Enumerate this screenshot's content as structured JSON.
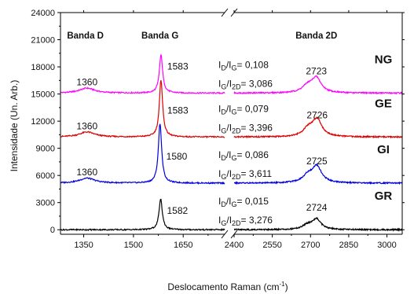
{
  "chart_data": {
    "type": "line",
    "title": "",
    "xlabel": "Deslocamento Raman (cm",
    "xlabel_sup": "-1",
    "xlabel_end": ")",
    "ylabel": "Intensidade (Un. Arb.)",
    "broken_x_axis": true,
    "xlim_left": [
      1280,
      1775
    ],
    "xlim_right": [
      2400,
      3060
    ],
    "ylim": [
      -500,
      24000
    ],
    "grid": false,
    "x_tick_labels": [
      "1350",
      "1500",
      "1650",
      "2400",
      "2550",
      "2700",
      "2850",
      "3000"
    ],
    "x_tick_values": [
      1350,
      1500,
      1650,
      2400,
      2550,
      2700,
      2850,
      3000
    ],
    "y_tick_values": [
      0,
      3000,
      6000,
      9000,
      12000,
      15000,
      18000,
      21000,
      24000
    ],
    "y_tick_labels": [
      "0",
      "3000",
      "6000",
      "9000",
      "12000",
      "15000",
      "18000",
      "21000",
      "24000"
    ],
    "band_labels": [
      {
        "text": "Banda D",
        "x": 1355
      },
      {
        "text": "Banda G",
        "x": 1580
      },
      {
        "text": "Banda 2D",
        "x": 2723
      }
    ],
    "series": [
      {
        "name": "NG",
        "color": "#ff00ff",
        "baseline": 15100,
        "peaks": [
          {
            "x": 1360,
            "height": 550,
            "width": 55,
            "label": "1360"
          },
          {
            "x": 1583,
            "height": 4200,
            "width": 12,
            "label": "1583"
          },
          {
            "x": 2723,
            "height": 1600,
            "width": 45,
            "label": "2723"
          }
        ],
        "ratios": {
          "d_g": "= 0,108",
          "g_2d": "= 3,086"
        }
      },
      {
        "name": "GE",
        "color": "#dd0000",
        "baseline": 10250,
        "peaks": [
          {
            "x": 1360,
            "height": 550,
            "width": 55,
            "label": "1360"
          },
          {
            "x": 1583,
            "height": 6300,
            "width": 12,
            "label": "1583"
          },
          {
            "x": 2726,
            "height": 1850,
            "width": 45,
            "label": "2726"
          }
        ],
        "ratios": {
          "d_g": "= 0,079",
          "g_2d": "= 3,396"
        }
      },
      {
        "name": "GI",
        "color": "#0000dd",
        "baseline": 5150,
        "peaks": [
          {
            "x": 1360,
            "height": 550,
            "width": 55,
            "label": "1360"
          },
          {
            "x": 1580,
            "height": 6600,
            "width": 12,
            "label": "1580"
          },
          {
            "x": 2725,
            "height": 1750,
            "width": 45,
            "label": "2725"
          }
        ],
        "ratios": {
          "d_g": "= 0,086",
          "g_2d": "= 3,611"
        }
      },
      {
        "name": "GR",
        "color": "#000000",
        "baseline": 0,
        "peaks": [
          {
            "x": 1582,
            "height": 3400,
            "width": 12,
            "label": "1582"
          },
          {
            "x": 2724,
            "height": 1100,
            "width": 40,
            "label": "2724"
          }
        ],
        "ratios": {
          "d_g": "= 0,015",
          "g_2d": "= 3,276"
        }
      }
    ]
  }
}
